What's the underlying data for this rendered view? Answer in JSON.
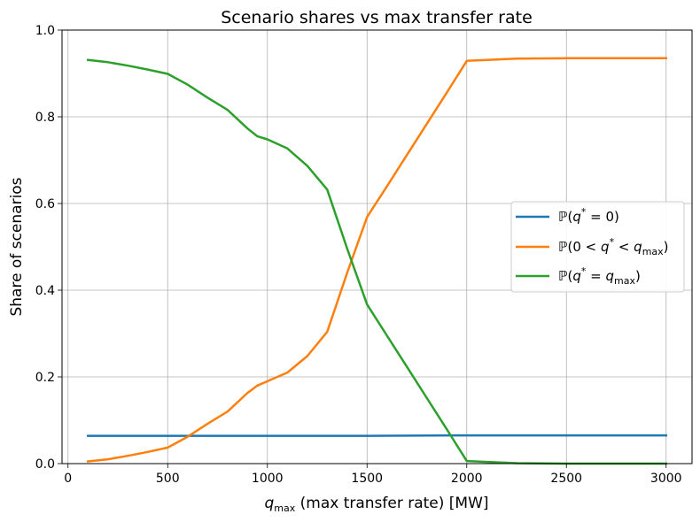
{
  "chart_data": {
    "type": "line",
    "title": "Scenario shares vs max transfer rate",
    "xlabel": "q_max (max transfer rate) [MW]",
    "ylabel": "Share of scenarios",
    "xlim": [
      -30,
      3130
    ],
    "ylim": [
      0,
      1
    ],
    "xticks": [
      0,
      500,
      1000,
      1500,
      2000,
      2500,
      3000
    ],
    "yticks": [
      0.0,
      0.2,
      0.4,
      0.6,
      0.8,
      1.0
    ],
    "xtick_labels": [
      "0",
      "500",
      "1000",
      "1500",
      "2000",
      "2500",
      "3000"
    ],
    "ytick_labels": [
      "0.0",
      "0.2",
      "0.4",
      "0.6",
      "0.8",
      "1.0"
    ],
    "grid": true,
    "legend_position": "center-right",
    "series": [
      {
        "name": "P(q* = 0)",
        "color": "#1f77b4",
        "x": [
          100,
          500,
          1000,
          1500,
          2000,
          2500,
          3000
        ],
        "y": [
          0.064,
          0.064,
          0.064,
          0.064,
          0.065,
          0.065,
          0.065
        ]
      },
      {
        "name": "P(0 < q* < q_max)",
        "color": "#ff7f0e",
        "x": [
          100,
          200,
          300,
          400,
          500,
          600,
          700,
          800,
          900,
          950,
          1000,
          1100,
          1200,
          1300,
          1400,
          1500,
          1600,
          1700,
          1800,
          1900,
          2000,
          2250,
          2500,
          2750,
          3000
        ],
        "y": [
          0.005,
          0.01,
          0.018,
          0.027,
          0.037,
          0.062,
          0.092,
          0.12,
          0.163,
          0.18,
          0.19,
          0.21,
          0.248,
          0.304,
          0.44,
          0.569,
          0.64,
          0.712,
          0.784,
          0.856,
          0.929,
          0.934,
          0.935,
          0.935,
          0.935
        ]
      },
      {
        "name": "P(q* = q_max)",
        "color": "#2ca02c",
        "x": [
          100,
          200,
          300,
          400,
          500,
          600,
          700,
          800,
          900,
          950,
          1000,
          1100,
          1200,
          1300,
          1400,
          1500,
          1600,
          1700,
          1800,
          1900,
          2000,
          2250,
          2500,
          2750,
          3000
        ],
        "y": [
          0.931,
          0.926,
          0.918,
          0.909,
          0.899,
          0.874,
          0.844,
          0.816,
          0.773,
          0.755,
          0.748,
          0.727,
          0.687,
          0.632,
          0.496,
          0.367,
          0.295,
          0.223,
          0.151,
          0.079,
          0.006,
          0.001,
          0.0,
          0.0,
          0.0
        ]
      }
    ]
  }
}
